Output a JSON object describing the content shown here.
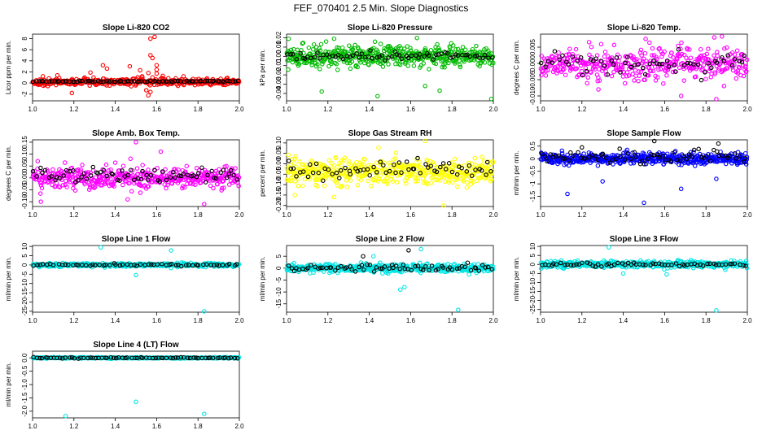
{
  "figure": {
    "title": "FEF_070401  2.5 Min. Slope Diagnostics"
  },
  "chart_data": [
    {
      "type": "scatter",
      "title": "Slope Li-820 CO2",
      "ylabel": "Licor ppm per min.",
      "xlabel": "",
      "xlim": [
        1.0,
        2.0
      ],
      "ylim": [
        -3.2,
        8.8
      ],
      "xticks": [
        "1.0",
        "1.2",
        "1.4",
        "1.6",
        "1.8",
        "2.0"
      ],
      "yticks": [
        "-2",
        "0",
        "2",
        "4",
        "6",
        "8"
      ],
      "color": "#ff0000",
      "series": [
        {
          "name": "all",
          "color": "#ff0000",
          "center": 0.2,
          "spread": 0.5,
          "n": 420,
          "outliers": [
            [
              1.05,
              1.2
            ],
            [
              1.12,
              1.4
            ],
            [
              1.19,
              -1.8
            ],
            [
              1.28,
              1.9
            ],
            [
              1.34,
              3.2
            ],
            [
              1.36,
              2.6
            ],
            [
              1.47,
              3.0
            ],
            [
              1.53,
              1.2
            ],
            [
              1.57,
              5.0
            ],
            [
              1.57,
              8.0
            ],
            [
              1.59,
              8.3
            ],
            [
              1.58,
              4.5
            ],
            [
              1.6,
              3.2
            ],
            [
              1.6,
              2.4
            ],
            [
              1.6,
              1.7
            ],
            [
              1.56,
              1.8
            ],
            [
              1.55,
              -1.3
            ],
            [
              1.56,
              -2.2
            ],
            [
              1.57,
              -1.6
            ],
            [
              1.58,
              1.0
            ],
            [
              1.63,
              1.3
            ],
            [
              1.73,
              1.2
            ],
            [
              1.52,
              2.3
            ]
          ]
        },
        {
          "name": "mean",
          "color": "#000000",
          "center": 0.3,
          "spread": 0.1,
          "n": 80,
          "outliers": []
        }
      ]
    },
    {
      "type": "scatter",
      "title": "Slope Li-820 Pressure",
      "ylabel": "kPa per min.",
      "xlabel": "",
      "xlim": [
        1.0,
        2.0
      ],
      "ylim": [
        -0.048,
        0.024
      ],
      "xticks": [
        "1.0",
        "1.2",
        "1.4",
        "1.6",
        "1.8",
        "2.0"
      ],
      "yticks": [
        "-0.04",
        "-0.03",
        "-0.02",
        "-0.01",
        "0.00",
        "0.01",
        "0.02"
      ],
      "series": [
        {
          "name": "all",
          "color": "#00bb00",
          "center": 0.0,
          "spread": 0.009,
          "n": 500,
          "outliers": [
            [
              1.01,
              0.019
            ],
            [
              1.17,
              -0.038
            ],
            [
              1.23,
              0.019
            ],
            [
              1.44,
              -0.043
            ],
            [
              1.67,
              -0.032
            ],
            [
              1.74,
              -0.037
            ],
            [
              1.99,
              -0.046
            ]
          ]
        },
        {
          "name": "mean",
          "color": "#000000",
          "center": 0.0,
          "spread": 0.004,
          "n": 70,
          "outliers": []
        }
      ]
    },
    {
      "type": "scatter",
      "title": "Slope Li-820 Temp.",
      "ylabel": "degrees C per min.",
      "xlabel": "",
      "xlim": [
        1.0,
        2.0
      ],
      "ylim": [
        -0.0115,
        0.009
      ],
      "xticks": [
        "1.0",
        "1.2",
        "1.4",
        "1.6",
        "1.8",
        "2.0"
      ],
      "yticks": [
        "-0.010",
        "-0.005",
        "0.000",
        "0.005"
      ],
      "series": [
        {
          "name": "all",
          "color": "#ff00ff",
          "center": 0.0,
          "spread": 0.004,
          "n": 420,
          "outliers": [
            [
              1.28,
              -0.008
            ],
            [
              1.68,
              -0.01
            ],
            [
              1.85,
              -0.011
            ],
            [
              1.84,
              0.008
            ]
          ]
        },
        {
          "name": "mean",
          "color": "#000000",
          "center": 0.0,
          "spread": 0.003,
          "n": 60,
          "outliers": []
        }
      ]
    },
    {
      "type": "scatter",
      "title": "Slope Amb. Box Temp.",
      "ylabel": "degrees C per min.",
      "xlabel": "",
      "xlim": [
        1.0,
        2.0
      ],
      "ylim": [
        -0.12,
        0.16
      ],
      "xticks": [
        "1.0",
        "1.2",
        "1.4",
        "1.6",
        "1.8",
        "2.0"
      ],
      "yticks": [
        "-0.10",
        "-0.05",
        "0.00",
        "0.05",
        "0.10",
        "0.15"
      ],
      "series": [
        {
          "name": "all",
          "color": "#ff00ff",
          "center": 0.0,
          "spread": 0.04,
          "n": 450,
          "outliers": [
            [
              1.04,
              -0.1
            ],
            [
              1.46,
              -0.09
            ],
            [
              1.5,
              0.15
            ],
            [
              1.62,
              0.11
            ],
            [
              1.83,
              -0.11
            ]
          ]
        },
        {
          "name": "mean",
          "color": "#000000",
          "center": 0.01,
          "spread": 0.025,
          "n": 70,
          "outliers": []
        }
      ]
    },
    {
      "type": "scatter",
      "title": "Slope Gas Stream RH",
      "ylabel": "percent per min.",
      "xlabel": "",
      "xlim": [
        1.0,
        2.0
      ],
      "ylim": [
        -0.205,
        0.115
      ],
      "xticks": [
        "1.0",
        "1.2",
        "1.4",
        "1.6",
        "1.8",
        "2.0"
      ],
      "yticks": [
        "-0.20",
        "-0.15",
        "-0.10",
        "-0.05",
        "0.00",
        "0.05",
        "0.10"
      ],
      "series": [
        {
          "name": "all",
          "color": "#ffff00",
          "center": -0.04,
          "spread": 0.05,
          "n": 480,
          "outliers": [
            [
              1.67,
              0.11
            ],
            [
              1.76,
              -0.2
            ],
            [
              1.04,
              -0.15
            ],
            [
              1.23,
              -0.16
            ]
          ]
        },
        {
          "name": "mean",
          "color": "#000000",
          "center": -0.03,
          "spread": 0.035,
          "n": 65,
          "outliers": []
        }
      ]
    },
    {
      "type": "scatter",
      "title": "Slope Sample Flow",
      "ylabel": "ml/min per min.",
      "xlabel": "",
      "xlim": [
        1.0,
        2.0
      ],
      "ylim": [
        -1.9,
        0.75
      ],
      "xticks": [
        "1.0",
        "1.2",
        "1.4",
        "1.6",
        "1.8",
        "2.0"
      ],
      "yticks": [
        "-1.5",
        "-1",
        "-0.5",
        "0",
        "0.5"
      ],
      "series": [
        {
          "name": "all",
          "color": "#0000ff",
          "center": 0.0,
          "spread": 0.18,
          "n": 500,
          "outliers": [
            [
              1.13,
              -1.4
            ],
            [
              1.5,
              -1.75
            ],
            [
              1.68,
              -1.2
            ],
            [
              1.3,
              -0.9
            ],
            [
              1.85,
              -0.8
            ]
          ]
        },
        {
          "name": "mean",
          "color": "#000000",
          "center": 0.1,
          "spread": 0.25,
          "n": 70,
          "outliers": [
            [
              1.55,
              0.7
            ],
            [
              1.86,
              0.6
            ],
            [
              1.2,
              0.45
            ]
          ]
        }
      ]
    },
    {
      "type": "scatter",
      "title": "Slope Line 1 Flow",
      "ylabel": "ml/min per min.",
      "xlabel": "",
      "xlim": [
        1.0,
        2.0
      ],
      "ylim": [
        -25.5,
        10.5
      ],
      "xticks": [
        "1.0",
        "1.2",
        "1.4",
        "1.6",
        "1.8",
        "2.0"
      ],
      "yticks": [
        "-25",
        "-20",
        "-15",
        "-10",
        "-5",
        "0",
        "5",
        "10"
      ],
      "series": [
        {
          "name": "all",
          "color": "#00e5e5",
          "center": 0.0,
          "spread": 0.8,
          "n": 420,
          "outliers": [
            [
              1.33,
              9.5
            ],
            [
              1.5,
              -5.5
            ],
            [
              1.67,
              7.8
            ],
            [
              1.83,
              -25.0
            ]
          ]
        },
        {
          "name": "mean",
          "color": "#000000",
          "center": 0.0,
          "spread": 0.4,
          "n": 60,
          "outliers": []
        }
      ]
    },
    {
      "type": "scatter",
      "title": "Slope Line 2 Flow",
      "ylabel": "ml/min per min.",
      "xlabel": "",
      "xlim": [
        1.0,
        2.0
      ],
      "ylim": [
        -18.5,
        9.5
      ],
      "xticks": [
        "1.0",
        "1.2",
        "1.4",
        "1.6",
        "1.8",
        "2.0"
      ],
      "yticks": [
        "-15",
        "-10",
        "-5",
        "0",
        "5"
      ],
      "series": [
        {
          "name": "all",
          "color": "#00e5e5",
          "center": 0.0,
          "spread": 1.4,
          "n": 450,
          "outliers": [
            [
              1.55,
              -9.0
            ],
            [
              1.57,
              -8.0
            ],
            [
              1.65,
              8.0
            ],
            [
              1.83,
              -17.5
            ],
            [
              1.42,
              5.0
            ]
          ]
        },
        {
          "name": "mean",
          "color": "#000000",
          "center": 0.0,
          "spread": 1.3,
          "n": 70,
          "outliers": [
            [
              1.59,
              7.5
            ],
            [
              1.37,
              5.0
            ]
          ]
        }
      ]
    },
    {
      "type": "scatter",
      "title": "Slope Line 3 Flow",
      "ylabel": "ml/min per min.",
      "xlabel": "",
      "xlim": [
        1.0,
        2.0
      ],
      "ylim": [
        -26.5,
        10.5
      ],
      "xticks": [
        "1.0",
        "1.2",
        "1.4",
        "1.6",
        "1.8",
        "2.0"
      ],
      "yticks": [
        "-25",
        "-20",
        "-15",
        "-10",
        "-5",
        "0",
        "5",
        "10"
      ],
      "series": [
        {
          "name": "all",
          "color": "#00e5e5",
          "center": 0.0,
          "spread": 1.5,
          "n": 450,
          "outliers": [
            [
              1.33,
              9.5
            ],
            [
              1.4,
              -5.0
            ],
            [
              1.61,
              -5.5
            ],
            [
              1.85,
              -25.5
            ]
          ]
        },
        {
          "name": "mean",
          "color": "#000000",
          "center": 0.0,
          "spread": 0.8,
          "n": 65,
          "outliers": []
        }
      ]
    },
    {
      "type": "scatter",
      "title": "Slope Line 4 (LT) Flow",
      "ylabel": "ml/min per min.",
      "xlabel": "",
      "xlim": [
        1.0,
        2.0
      ],
      "ylim": [
        -2.25,
        0.25
      ],
      "xticks": [
        "1.0",
        "1.2",
        "1.4",
        "1.6",
        "1.8",
        "2.0"
      ],
      "yticks": [
        "-2.0",
        "-1.5",
        "-1.0",
        "-0.5",
        "0.0"
      ],
      "series": [
        {
          "name": "all",
          "color": "#00e5e5",
          "center": 0.0,
          "spread": 0.02,
          "n": 400,
          "outliers": [
            [
              1.16,
              -2.18
            ],
            [
              1.5,
              -1.65
            ],
            [
              1.83,
              -2.1
            ]
          ]
        },
        {
          "name": "mean",
          "color": "#000000",
          "center": 0.0,
          "spread": 0.015,
          "n": 70,
          "outliers": []
        }
      ]
    }
  ]
}
